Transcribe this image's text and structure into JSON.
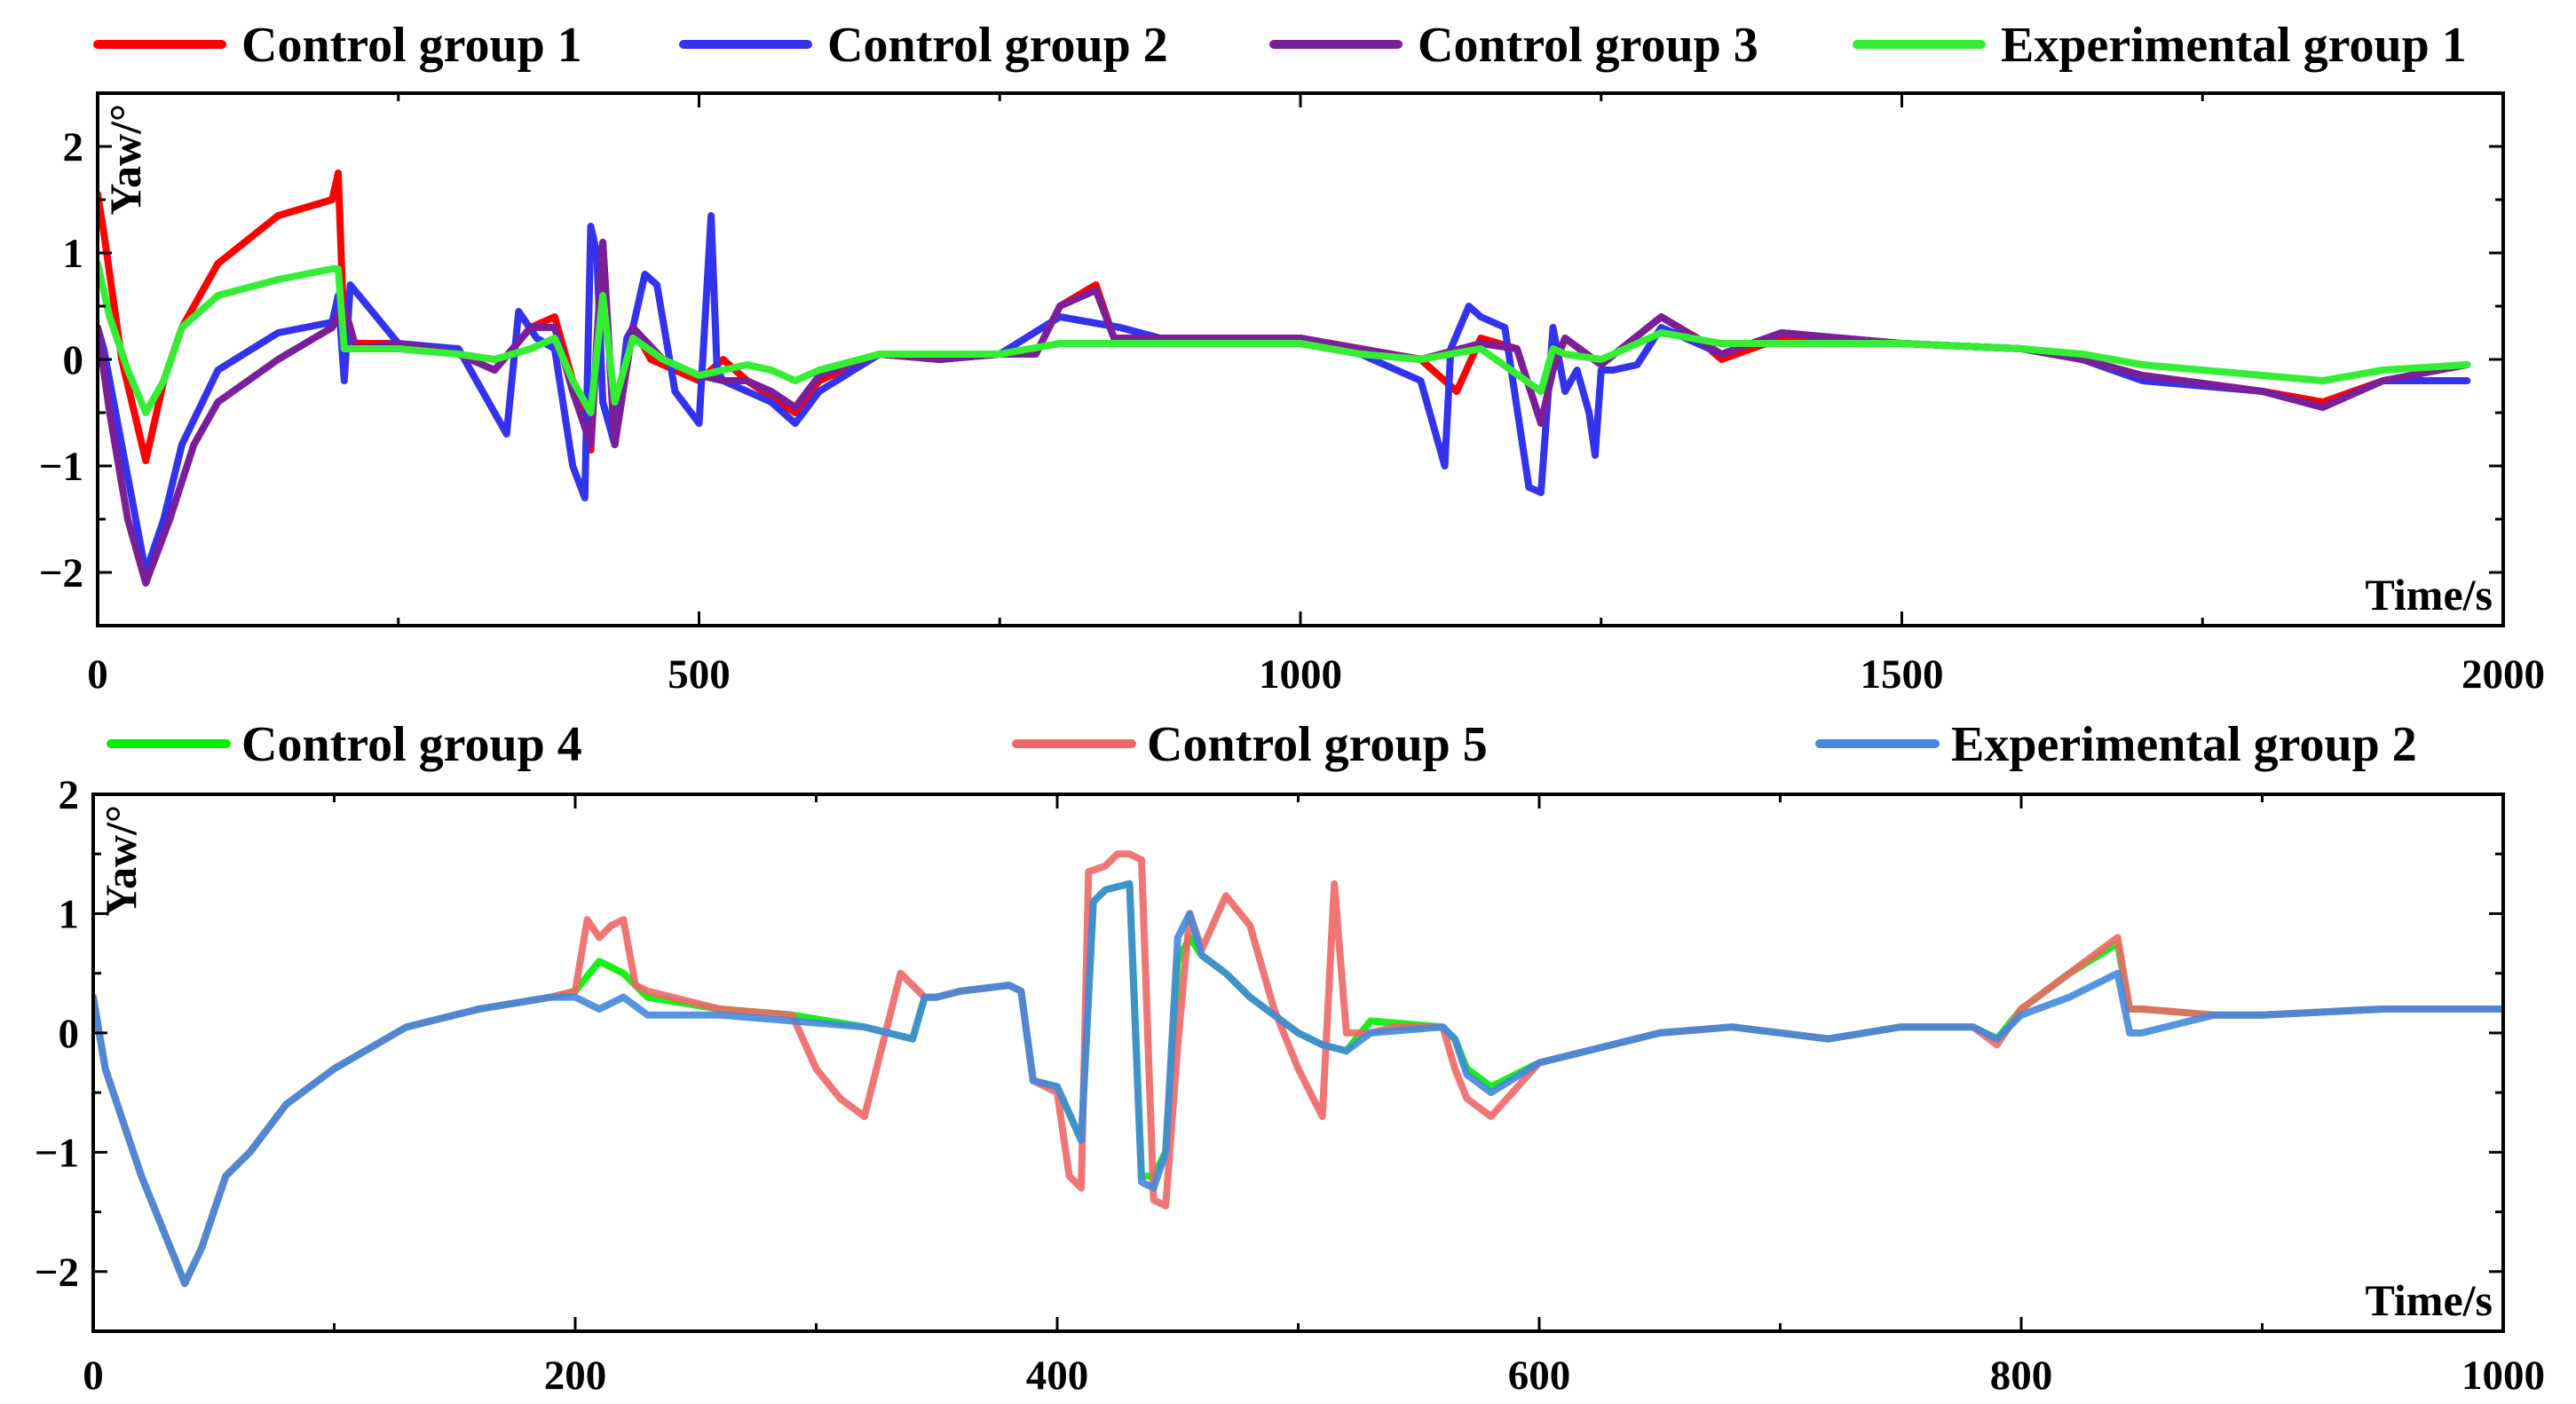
{
  "chart_data": [
    {
      "type": "line",
      "ylabel": "Yaw/°",
      "xlabel": "Time/s",
      "xlim": [
        0,
        2000
      ],
      "ylim": [
        -2.5,
        2.5
      ],
      "xticks": [
        0,
        500,
        1000,
        1500,
        2000
      ],
      "yticks": [
        -2,
        -1,
        0,
        1,
        2
      ],
      "legend_position": "top",
      "series": [
        {
          "name": "Control group 1",
          "color": "#ff0000",
          "x": [
            0,
            5,
            20,
            40,
            55,
            70,
            100,
            150,
            195,
            200,
            205,
            210,
            250,
            300,
            330,
            360,
            380,
            400,
            410,
            420,
            430,
            445,
            460,
            480,
            500,
            520,
            540,
            560,
            580,
            600,
            650,
            700,
            750,
            780,
            800,
            830,
            845,
            850,
            900,
            950,
            1000,
            1050,
            1100,
            1130,
            1150,
            1180,
            1200,
            1210,
            1220,
            1250,
            1300,
            1330,
            1350,
            1400,
            1500,
            1600,
            1650,
            1700,
            1800,
            1850,
            1900,
            1970
          ],
          "y": [
            1.55,
            1.2,
            0.0,
            -0.95,
            -0.2,
            0.3,
            0.9,
            1.35,
            1.5,
            1.75,
            0.2,
            0.15,
            0.15,
            0.05,
            -0.1,
            0.3,
            0.4,
            -0.4,
            -0.85,
            1.1,
            -0.8,
            0.3,
            0.0,
            -0.1,
            -0.2,
            0.0,
            -0.2,
            -0.35,
            -0.5,
            -0.2,
            0.05,
            0.0,
            0.05,
            0.05,
            0.5,
            0.7,
            0.2,
            0.2,
            0.2,
            0.2,
            0.2,
            0.1,
            0.0,
            -0.3,
            0.2,
            0.1,
            -0.6,
            -0.1,
            0.2,
            -0.05,
            0.4,
            0.2,
            0.0,
            0.2,
            0.15,
            0.1,
            0.0,
            -0.15,
            -0.3,
            -0.4,
            -0.2,
            -0.05
          ]
        },
        {
          "name": "Control group 2",
          "color": "#3333ee",
          "x": [
            0,
            5,
            20,
            40,
            55,
            70,
            100,
            150,
            195,
            200,
            205,
            210,
            250,
            300,
            320,
            340,
            350,
            365,
            380,
            395,
            405,
            410,
            415,
            420,
            430,
            440,
            445,
            455,
            465,
            480,
            500,
            510,
            515,
            520,
            540,
            560,
            580,
            600,
            650,
            700,
            750,
            800,
            850,
            900,
            950,
            1000,
            1050,
            1100,
            1120,
            1125,
            1140,
            1150,
            1170,
            1190,
            1200,
            1210,
            1220,
            1230,
            1240,
            1245,
            1250,
            1260,
            1280,
            1300,
            1330,
            1350,
            1400,
            1500,
            1600,
            1650,
            1700,
            1800,
            1850,
            1900,
            1970
          ],
          "y": [
            0.3,
            0.1,
            -0.8,
            -2.0,
            -1.5,
            -0.8,
            -0.1,
            0.25,
            0.35,
            0.6,
            -0.2,
            0.7,
            0.15,
            0.1,
            -0.3,
            -0.7,
            0.45,
            0.2,
            0.1,
            -1.0,
            -1.3,
            1.25,
            1.0,
            -0.4,
            -0.8,
            0.2,
            0.3,
            0.8,
            0.7,
            -0.3,
            -0.6,
            1.35,
            -0.1,
            -0.2,
            -0.3,
            -0.4,
            -0.6,
            -0.3,
            0.05,
            0.0,
            0.05,
            0.4,
            0.3,
            0.15,
            0.15,
            0.15,
            0.05,
            -0.2,
            -1.0,
            0.1,
            0.5,
            0.4,
            0.3,
            -1.2,
            -1.25,
            0.3,
            -0.3,
            -0.1,
            -0.5,
            -0.9,
            -0.1,
            -0.1,
            -0.05,
            0.3,
            0.15,
            0.05,
            0.25,
            0.15,
            0.1,
            0.0,
            -0.2,
            -0.3,
            -0.45,
            -0.2,
            -0.2
          ]
        },
        {
          "name": "Control group 3",
          "color": "#7a1f99",
          "x": [
            0,
            10,
            25,
            40,
            60,
            80,
            100,
            150,
            195,
            205,
            215,
            250,
            300,
            330,
            360,
            380,
            395,
            410,
            420,
            430,
            445,
            470,
            500,
            520,
            540,
            560,
            580,
            600,
            650,
            700,
            750,
            780,
            800,
            830,
            845,
            850,
            900,
            1000,
            1050,
            1100,
            1150,
            1180,
            1200,
            1210,
            1220,
            1250,
            1300,
            1350,
            1400,
            1500,
            1600,
            1650,
            1700,
            1800,
            1850,
            1900,
            1970
          ],
          "y": [
            0.3,
            -0.5,
            -1.5,
            -2.1,
            -1.5,
            -0.8,
            -0.4,
            0.0,
            0.3,
            0.5,
            0.1,
            0.15,
            0.05,
            -0.1,
            0.3,
            0.3,
            -0.3,
            -0.8,
            1.1,
            -0.8,
            0.3,
            0.0,
            -0.15,
            -0.2,
            -0.2,
            -0.3,
            -0.45,
            -0.15,
            0.05,
            0.0,
            0.05,
            0.05,
            0.5,
            0.65,
            0.2,
            0.2,
            0.2,
            0.2,
            0.1,
            0.0,
            0.15,
            0.1,
            -0.6,
            -0.1,
            0.2,
            -0.05,
            0.4,
            0.05,
            0.25,
            0.15,
            0.1,
            0.0,
            -0.15,
            -0.3,
            -0.45,
            -0.2,
            -0.05
          ]
        },
        {
          "name": "Experimental group 1",
          "color": "#33ee33",
          "x": [
            0,
            10,
            25,
            40,
            55,
            70,
            100,
            150,
            195,
            200,
            205,
            210,
            250,
            300,
            330,
            360,
            380,
            395,
            410,
            420,
            430,
            445,
            470,
            500,
            520,
            540,
            560,
            580,
            600,
            650,
            700,
            750,
            800,
            850,
            900,
            1000,
            1050,
            1100,
            1150,
            1200,
            1210,
            1220,
            1250,
            1300,
            1350,
            1400,
            1500,
            1600,
            1650,
            1700,
            1800,
            1850,
            1900,
            1970
          ],
          "y": [
            0.9,
            0.4,
            -0.1,
            -0.5,
            -0.2,
            0.3,
            0.6,
            0.75,
            0.85,
            0.85,
            0.1,
            0.1,
            0.1,
            0.05,
            0.0,
            0.1,
            0.2,
            -0.2,
            -0.5,
            0.6,
            -0.4,
            0.2,
            0.0,
            -0.15,
            -0.1,
            -0.05,
            -0.1,
            -0.2,
            -0.1,
            0.05,
            0.05,
            0.05,
            0.15,
            0.15,
            0.15,
            0.15,
            0.05,
            0.0,
            0.1,
            -0.3,
            0.1,
            0.05,
            0.0,
            0.25,
            0.15,
            0.15,
            0.15,
            0.1,
            0.05,
            -0.05,
            -0.15,
            -0.2,
            -0.1,
            -0.05
          ]
        }
      ]
    },
    {
      "type": "line",
      "ylabel": "Yaw/°",
      "xlabel": "Time/s",
      "xlim": [
        0,
        1000
      ],
      "ylim": [
        -2.5,
        2.0
      ],
      "xticks": [
        0,
        200,
        400,
        600,
        800,
        1000
      ],
      "yticks": [
        -2,
        -1,
        0,
        1,
        2
      ],
      "legend_position": "top",
      "series": [
        {
          "name": "Control group 4",
          "color": "#00ee00",
          "x": [
            0,
            5,
            20,
            38,
            45,
            55,
            65,
            80,
            100,
            130,
            160,
            190,
            200,
            210,
            220,
            230,
            260,
            290,
            320,
            330,
            340,
            345,
            350,
            360,
            380,
            385,
            390,
            400,
            410,
            415,
            420,
            430,
            435,
            440,
            445,
            450,
            455,
            460,
            470,
            480,
            500,
            510,
            520,
            530,
            560,
            565,
            570,
            580,
            600,
            620,
            650,
            680,
            700,
            720,
            750,
            780,
            790,
            800,
            820,
            840,
            845,
            850,
            880,
            900,
            950,
            1000
          ],
          "y": [
            0.3,
            -0.3,
            -1.2,
            -2.1,
            -1.8,
            -1.2,
            -1.0,
            -0.6,
            -0.3,
            0.05,
            0.2,
            0.3,
            0.35,
            0.6,
            0.5,
            0.3,
            0.2,
            0.15,
            0.05,
            0.0,
            -0.05,
            0.3,
            0.3,
            0.35,
            0.4,
            0.35,
            -0.4,
            -0.45,
            -0.9,
            1.1,
            1.2,
            1.25,
            -1.2,
            -1.2,
            -1.0,
            0.6,
            0.8,
            0.65,
            0.5,
            0.3,
            0.0,
            -0.1,
            -0.15,
            0.1,
            0.05,
            -0.05,
            -0.3,
            -0.45,
            -0.25,
            -0.15,
            0.0,
            0.05,
            0.0,
            -0.05,
            0.05,
            0.05,
            -0.05,
            0.2,
            0.5,
            0.75,
            0.2,
            0.2,
            0.15,
            0.15,
            0.2,
            0.2
          ]
        },
        {
          "name": "Control group 5",
          "color": "#ee6666",
          "x": [
            0,
            5,
            20,
            38,
            45,
            55,
            65,
            80,
            100,
            130,
            160,
            190,
            200,
            205,
            210,
            215,
            220,
            225,
            230,
            260,
            290,
            300,
            310,
            320,
            330,
            335,
            340,
            345,
            350,
            360,
            380,
            385,
            390,
            400,
            405,
            410,
            413,
            420,
            425,
            430,
            435,
            440,
            445,
            450,
            455,
            460,
            470,
            480,
            490,
            500,
            510,
            515,
            520,
            530,
            540,
            560,
            565,
            570,
            580,
            600,
            620,
            650,
            680,
            700,
            720,
            750,
            780,
            790,
            800,
            820,
            840,
            845,
            850,
            880,
            900,
            950,
            1000
          ],
          "y": [
            0.3,
            -0.3,
            -1.2,
            -2.1,
            -1.8,
            -1.2,
            -1.0,
            -0.6,
            -0.3,
            0.05,
            0.2,
            0.3,
            0.35,
            0.95,
            0.8,
            0.9,
            0.95,
            0.4,
            0.35,
            0.2,
            0.15,
            -0.3,
            -0.55,
            -0.7,
            0.1,
            0.5,
            0.4,
            0.3,
            0.3,
            0.35,
            0.4,
            0.35,
            -0.4,
            -0.5,
            -1.2,
            -1.3,
            1.35,
            1.4,
            1.5,
            1.5,
            1.45,
            -1.4,
            -1.45,
            -0.1,
            1.0,
            0.7,
            1.15,
            0.9,
            0.2,
            -0.3,
            -0.7,
            1.25,
            0.0,
            0.0,
            0.05,
            0.05,
            -0.3,
            -0.55,
            -0.7,
            -0.25,
            -0.15,
            0.0,
            0.05,
            0.0,
            -0.05,
            0.05,
            0.05,
            -0.1,
            0.2,
            0.5,
            0.8,
            0.2,
            0.2,
            0.15,
            0.15,
            0.2,
            0.2
          ]
        },
        {
          "name": "Experimental group 2",
          "color": "#4488dd",
          "x": [
            0,
            5,
            20,
            38,
            45,
            55,
            65,
            80,
            100,
            130,
            160,
            190,
            200,
            210,
            220,
            230,
            260,
            290,
            320,
            330,
            340,
            345,
            350,
            360,
            380,
            385,
            390,
            400,
            410,
            415,
            420,
            430,
            435,
            440,
            445,
            450,
            455,
            460,
            470,
            480,
            500,
            510,
            520,
            530,
            560,
            565,
            570,
            580,
            600,
            620,
            650,
            680,
            700,
            720,
            750,
            780,
            790,
            800,
            820,
            840,
            845,
            850,
            880,
            900,
            950,
            1000
          ],
          "y": [
            0.3,
            -0.3,
            -1.2,
            -2.1,
            -1.8,
            -1.2,
            -1.0,
            -0.6,
            -0.3,
            0.05,
            0.2,
            0.3,
            0.3,
            0.2,
            0.3,
            0.15,
            0.15,
            0.1,
            0.05,
            0.0,
            -0.05,
            0.3,
            0.3,
            0.35,
            0.4,
            0.35,
            -0.4,
            -0.45,
            -0.9,
            1.1,
            1.2,
            1.25,
            -1.25,
            -1.3,
            -1.0,
            0.8,
            1.0,
            0.65,
            0.5,
            0.3,
            0.0,
            -0.1,
            -0.15,
            0.0,
            0.05,
            -0.05,
            -0.35,
            -0.5,
            -0.25,
            -0.15,
            0.0,
            0.05,
            0.0,
            -0.05,
            0.05,
            0.05,
            -0.05,
            0.15,
            0.3,
            0.5,
            0.0,
            0.0,
            0.15,
            0.15,
            0.2,
            0.2
          ]
        }
      ]
    }
  ]
}
